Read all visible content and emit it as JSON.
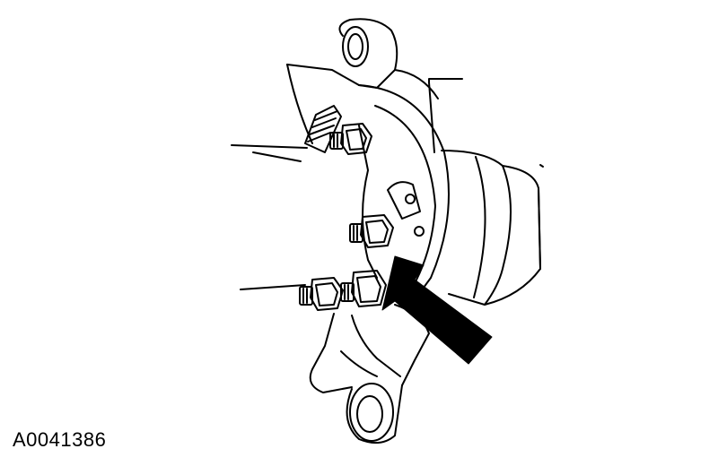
{
  "figure": {
    "id_label": "A0041386"
  },
  "colors": {
    "ink": "#000000",
    "paper": "#ffffff"
  }
}
